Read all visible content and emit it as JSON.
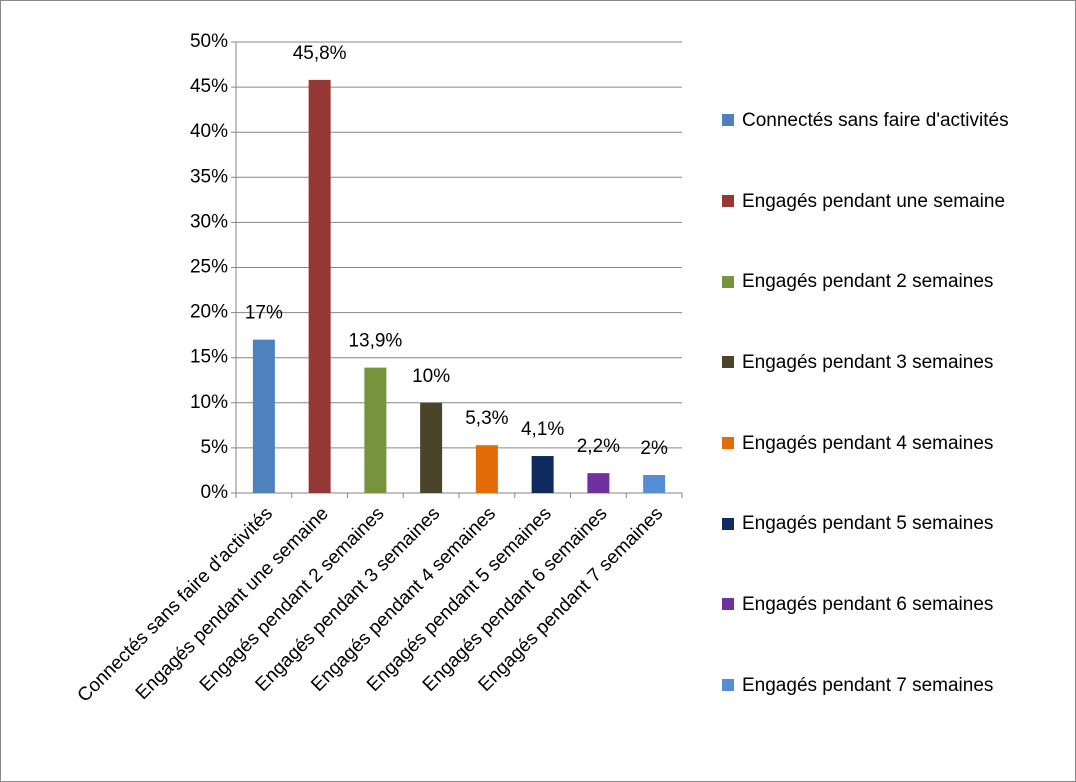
{
  "chart_data": {
    "type": "bar",
    "categories": [
      "Connectés sans faire d'activités",
      "Engagés pendant une semaine",
      "Engagés pendant 2 semaines",
      "Engagés pendant 3 semaines",
      "Engagés pendant 4 semaines",
      "Engagés pendant 5 semaines",
      "Engagés pendant 6 semaines",
      "Engagés pendant 7 semaines"
    ],
    "values": [
      17,
      45.8,
      13.9,
      10,
      5.3,
      4.1,
      2.2,
      2
    ],
    "value_labels": [
      "17%",
      "45,8%",
      "13,9%",
      "10%",
      "5,3%",
      "4,1%",
      "2,2%",
      "2%"
    ],
    "colors": [
      "#4f81bd",
      "#953735",
      "#77933c",
      "#4a452a",
      "#e36c09",
      "#10295e",
      "#7030a0",
      "#558ed5"
    ],
    "ylim": [
      0,
      50
    ],
    "yticks": [
      {
        "value": 0,
        "label": "0%"
      },
      {
        "value": 5,
        "label": "5%"
      },
      {
        "value": 10,
        "label": "10%"
      },
      {
        "value": 15,
        "label": "15%"
      },
      {
        "value": 20,
        "label": "20%"
      },
      {
        "value": 25,
        "label": "25%"
      },
      {
        "value": 30,
        "label": "30%"
      },
      {
        "value": 35,
        "label": "35%"
      },
      {
        "value": 40,
        "label": "40%"
      },
      {
        "value": 45,
        "label": "45%"
      },
      {
        "value": 50,
        "label": "50%"
      }
    ],
    "grid": true,
    "legend": "right"
  }
}
